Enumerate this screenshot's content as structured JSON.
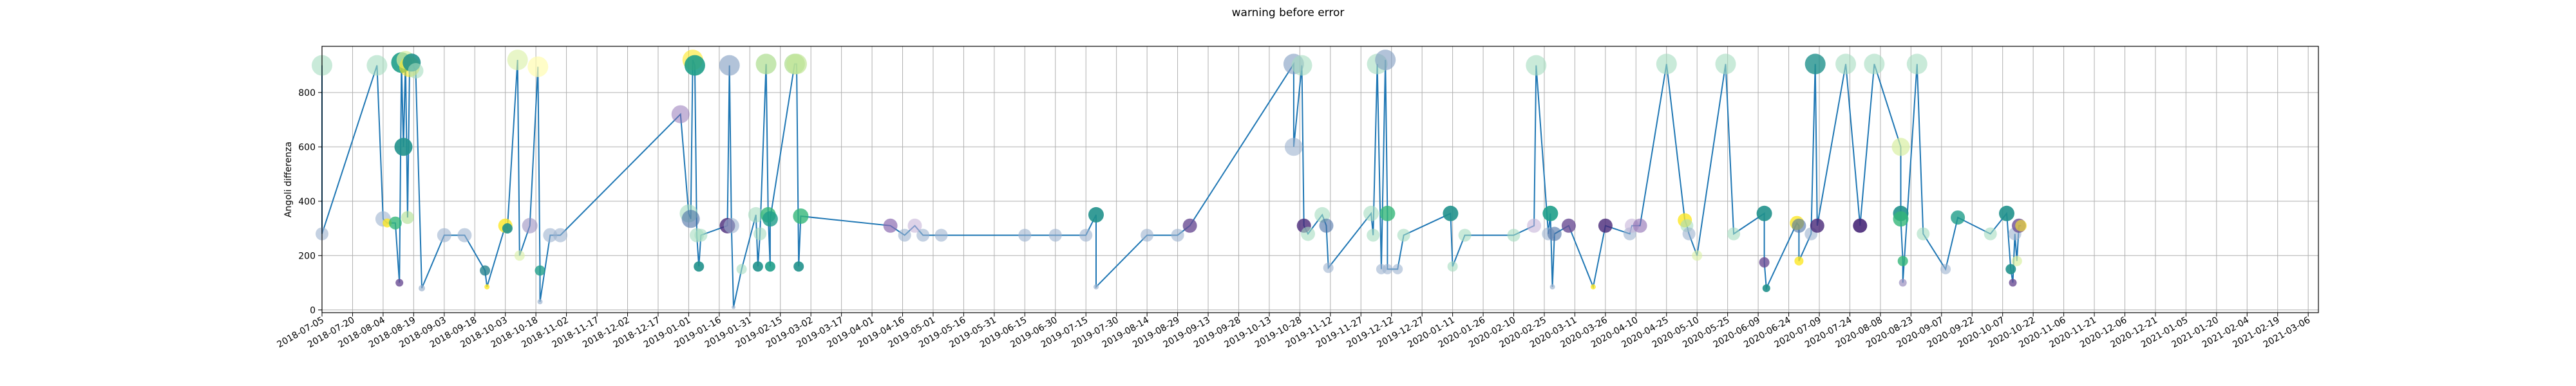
{
  "chart_data": {
    "type": "scatter",
    "title": "warning before error",
    "xlabel": "",
    "ylabel": "Angoli differenza",
    "x_type": "date",
    "xlim": [
      "2018-07-05",
      "2021-03-11"
    ],
    "ylim": [
      -10,
      970
    ],
    "yticks": [
      0,
      200,
      400,
      600,
      800
    ],
    "xticks": [
      "2018-07-05",
      "2018-07-20",
      "2018-08-04",
      "2018-08-19",
      "2018-09-03",
      "2018-09-18",
      "2018-10-03",
      "2018-10-18",
      "2018-11-02",
      "2018-11-17",
      "2018-12-02",
      "2018-12-17",
      "2019-01-01",
      "2019-01-16",
      "2019-01-31",
      "2019-02-15",
      "2019-03-02",
      "2019-03-17",
      "2019-04-01",
      "2019-04-16",
      "2019-05-01",
      "2019-05-16",
      "2019-05-31",
      "2019-06-15",
      "2019-06-30",
      "2019-07-15",
      "2019-07-30",
      "2019-08-14",
      "2019-08-29",
      "2019-09-13",
      "2019-09-28",
      "2019-10-13",
      "2019-10-28",
      "2019-11-12",
      "2019-11-27",
      "2019-12-12",
      "2019-12-27",
      "2020-01-11",
      "2020-01-26",
      "2020-02-10",
      "2020-02-25",
      "2020-03-11",
      "2020-03-26",
      "2020-04-10",
      "2020-04-25",
      "2020-05-10",
      "2020-05-25",
      "2020-06-09",
      "2020-06-24",
      "2020-07-09",
      "2020-07-24",
      "2020-08-08",
      "2020-08-23",
      "2020-09-07",
      "2020-09-22",
      "2020-10-07",
      "2020-10-22",
      "2020-11-06",
      "2020-11-21",
      "2020-12-06",
      "2020-12-21",
      "2021-01-05",
      "2021-01-20",
      "2021-02-04",
      "2021-02-19",
      "2021-03-06"
    ],
    "grid": true,
    "legend": "none",
    "line_color": "#1f77b4",
    "points": [
      {
        "x": "2018-07-05",
        "y": 900,
        "color": "#a5dcc0",
        "size": 16,
        "alpha": 0.6
      },
      {
        "x": "2018-07-05",
        "y": 280,
        "color": "#9cb3cf",
        "size": 10,
        "alpha": 0.6
      },
      {
        "x": "2018-08-01",
        "y": 900,
        "color": "#a5dcc0",
        "size": 16,
        "alpha": 0.6
      },
      {
        "x": "2018-08-04",
        "y": 335,
        "color": "#9cb3cf",
        "size": 12,
        "alpha": 0.6
      },
      {
        "x": "2018-08-06",
        "y": 320,
        "color": "#fde725",
        "size": 7,
        "alpha": 0.8
      },
      {
        "x": "2018-08-10",
        "y": 320,
        "color": "#35b779",
        "size": 10,
        "alpha": 0.8
      },
      {
        "x": "2018-08-12",
        "y": 100,
        "color": "#6a4c93",
        "size": 6,
        "alpha": 0.8
      },
      {
        "x": "2018-08-13",
        "y": 910,
        "color": "#1f9e89",
        "size": 16,
        "alpha": 0.9
      },
      {
        "x": "2018-08-14",
        "y": 600,
        "color": "#21918c",
        "size": 14,
        "alpha": 0.9
      },
      {
        "x": "2018-08-15",
        "y": 920,
        "color": "#d9f0a3",
        "size": 14,
        "alpha": 0.7
      },
      {
        "x": "2018-08-16",
        "y": 340,
        "color": "#addd8e",
        "size": 10,
        "alpha": 0.6
      },
      {
        "x": "2018-08-17",
        "y": 895,
        "color": "#fde725",
        "size": 16,
        "alpha": 0.6
      },
      {
        "x": "2018-08-18",
        "y": 910,
        "color": "#21918c",
        "size": 14,
        "alpha": 0.9
      },
      {
        "x": "2018-08-20",
        "y": 880,
        "color": "#a5dcc0",
        "size": 12,
        "alpha": 0.6
      },
      {
        "x": "2018-08-23",
        "y": 80,
        "color": "#9cb3cf",
        "size": 5,
        "alpha": 0.7
      },
      {
        "x": "2018-09-03",
        "y": 275,
        "color": "#9cb3cf",
        "size": 11,
        "alpha": 0.6
      },
      {
        "x": "2018-09-13",
        "y": 275,
        "color": "#9cb3cf",
        "size": 11,
        "alpha": 0.6
      },
      {
        "x": "2018-09-23",
        "y": 145,
        "color": "#26828e",
        "size": 8,
        "alpha": 0.8
      },
      {
        "x": "2018-09-24",
        "y": 85,
        "color": "#fde725",
        "size": 4,
        "alpha": 0.8
      },
      {
        "x": "2018-10-03",
        "y": 310,
        "color": "#fde725",
        "size": 11,
        "alpha": 0.8
      },
      {
        "x": "2018-10-04",
        "y": 300,
        "color": "#21918c",
        "size": 8,
        "alpha": 0.9
      },
      {
        "x": "2018-10-09",
        "y": 920,
        "color": "#d9f0a3",
        "size": 16,
        "alpha": 0.6
      },
      {
        "x": "2018-10-10",
        "y": 200,
        "color": "#d9f0a3",
        "size": 8,
        "alpha": 0.6
      },
      {
        "x": "2018-10-15",
        "y": 310,
        "color": "#9a8fbf",
        "size": 12,
        "alpha": 0.6
      },
      {
        "x": "2018-10-19",
        "y": 895,
        "color": "#fffcb0",
        "size": 16,
        "alpha": 0.7
      },
      {
        "x": "2018-10-20",
        "y": 145,
        "color": "#1f9e89",
        "size": 8,
        "alpha": 0.8
      },
      {
        "x": "2018-10-20",
        "y": 30,
        "color": "#9cb3cf",
        "size": 4,
        "alpha": 0.7
      },
      {
        "x": "2018-10-25",
        "y": 275,
        "color": "#9cb3cf",
        "size": 11,
        "alpha": 0.6
      },
      {
        "x": "2018-10-30",
        "y": 275,
        "color": "#9cb3cf",
        "size": 11,
        "alpha": 0.6
      },
      {
        "x": "2018-12-28",
        "y": 720,
        "color": "#8c6bb1",
        "size": 14,
        "alpha": 0.5
      },
      {
        "x": "2019-01-01",
        "y": 355,
        "color": "#a5dcc0",
        "size": 14,
        "alpha": 0.6
      },
      {
        "x": "2019-01-02",
        "y": 335,
        "color": "#4a6fa5",
        "size": 14,
        "alpha": 0.6
      },
      {
        "x": "2019-01-03",
        "y": 920,
        "color": "#fde725",
        "size": 16,
        "alpha": 0.6
      },
      {
        "x": "2019-01-04",
        "y": 900,
        "color": "#1f9e89",
        "size": 16,
        "alpha": 0.9
      },
      {
        "x": "2019-01-05",
        "y": 275,
        "color": "#a5dcc0",
        "size": 11,
        "alpha": 0.6
      },
      {
        "x": "2019-01-06",
        "y": 160,
        "color": "#21918c",
        "size": 8,
        "alpha": 0.9
      },
      {
        "x": "2019-01-07",
        "y": 275,
        "color": "#a5dcc0",
        "size": 10,
        "alpha": 0.6
      },
      {
        "x": "2019-01-20",
        "y": 310,
        "color": "#482878",
        "size": 12,
        "alpha": 0.8
      },
      {
        "x": "2019-01-21",
        "y": 900,
        "color": "#7f9bc0",
        "size": 16,
        "alpha": 0.6
      },
      {
        "x": "2019-01-22",
        "y": 310,
        "color": "#9cb3cf",
        "size": 12,
        "alpha": 0.6
      },
      {
        "x": "2019-01-23",
        "y": 10,
        "color": "#9cb3cf",
        "size": 3,
        "alpha": 0.7
      },
      {
        "x": "2019-01-27",
        "y": 150,
        "color": "#a5dcc0",
        "size": 8,
        "alpha": 0.6
      },
      {
        "x": "2019-02-03",
        "y": 350,
        "color": "#a5dcc0",
        "size": 12,
        "alpha": 0.6
      },
      {
        "x": "2019-02-04",
        "y": 160,
        "color": "#21918c",
        "size": 8,
        "alpha": 0.9
      },
      {
        "x": "2019-02-05",
        "y": 280,
        "color": "#a5dcc0",
        "size": 10,
        "alpha": 0.6
      },
      {
        "x": "2019-02-08",
        "y": 905,
        "color": "#addd8e",
        "size": 16,
        "alpha": 0.7
      },
      {
        "x": "2019-02-09",
        "y": 350,
        "color": "#35b779",
        "size": 12,
        "alpha": 0.8
      },
      {
        "x": "2019-02-10",
        "y": 160,
        "color": "#1f9e89",
        "size": 8,
        "alpha": 0.9
      },
      {
        "x": "2019-02-10",
        "y": 335,
        "color": "#1f9e89",
        "size": 12,
        "alpha": 0.8
      },
      {
        "x": "2019-02-22",
        "y": 905,
        "color": "#addd8e",
        "size": 16,
        "alpha": 0.7
      },
      {
        "x": "2019-02-23",
        "y": 905,
        "color": "#c2e699",
        "size": 16,
        "alpha": 0.7
      },
      {
        "x": "2019-02-24",
        "y": 160,
        "color": "#21918c",
        "size": 8,
        "alpha": 0.9
      },
      {
        "x": "2019-02-25",
        "y": 345,
        "color": "#35b779",
        "size": 12,
        "alpha": 0.8
      },
      {
        "x": "2019-04-10",
        "y": 310,
        "color": "#8c6bb1",
        "size": 11,
        "alpha": 0.7
      },
      {
        "x": "2019-04-17",
        "y": 275,
        "color": "#9cb3cf",
        "size": 10,
        "alpha": 0.6
      },
      {
        "x": "2019-04-22",
        "y": 310,
        "color": "#c6b4d8",
        "size": 11,
        "alpha": 0.6
      },
      {
        "x": "2019-04-26",
        "y": 275,
        "color": "#9cb3cf",
        "size": 10,
        "alpha": 0.6
      },
      {
        "x": "2019-05-05",
        "y": 275,
        "color": "#9cb3cf",
        "size": 10,
        "alpha": 0.6
      },
      {
        "x": "2019-06-15",
        "y": 275,
        "color": "#9cb3cf",
        "size": 10,
        "alpha": 0.6
      },
      {
        "x": "2019-06-30",
        "y": 275,
        "color": "#9cb3cf",
        "size": 10,
        "alpha": 0.6
      },
      {
        "x": "2019-07-15",
        "y": 275,
        "color": "#9cb3cf",
        "size": 10,
        "alpha": 0.6
      },
      {
        "x": "2019-07-20",
        "y": 350,
        "color": "#21918c",
        "size": 12,
        "alpha": 0.9
      },
      {
        "x": "2019-07-20",
        "y": 85,
        "color": "#9cb3cf",
        "size": 4,
        "alpha": 0.7
      },
      {
        "x": "2019-08-14",
        "y": 275,
        "color": "#9cb3cf",
        "size": 10,
        "alpha": 0.6
      },
      {
        "x": "2019-08-29",
        "y": 275,
        "color": "#9cb3cf",
        "size": 10,
        "alpha": 0.6
      },
      {
        "x": "2019-09-04",
        "y": 310,
        "color": "#6a4c93",
        "size": 11,
        "alpha": 0.8
      },
      {
        "x": "2019-10-25",
        "y": 905,
        "color": "#7f9bc0",
        "size": 16,
        "alpha": 0.6
      },
      {
        "x": "2019-10-25",
        "y": 600,
        "color": "#9cb3cf",
        "size": 14,
        "alpha": 0.6
      },
      {
        "x": "2019-10-29",
        "y": 900,
        "color": "#a5dcc0",
        "size": 16,
        "alpha": 0.6
      },
      {
        "x": "2019-10-30",
        "y": 310,
        "color": "#482878",
        "size": 11,
        "alpha": 0.8
      },
      {
        "x": "2019-11-01",
        "y": 280,
        "color": "#a5dcc0",
        "size": 11,
        "alpha": 0.6
      },
      {
        "x": "2019-11-08",
        "y": 350,
        "color": "#a5dcc0",
        "size": 12,
        "alpha": 0.6
      },
      {
        "x": "2019-11-10",
        "y": 310,
        "color": "#4a6fa5",
        "size": 11,
        "alpha": 0.6
      },
      {
        "x": "2019-11-11",
        "y": 155,
        "color": "#9cb3cf",
        "size": 8,
        "alpha": 0.6
      },
      {
        "x": "2019-12-02",
        "y": 355,
        "color": "#a5dcc0",
        "size": 12,
        "alpha": 0.6
      },
      {
        "x": "2019-12-03",
        "y": 275,
        "color": "#a5dcc0",
        "size": 10,
        "alpha": 0.6
      },
      {
        "x": "2019-12-05",
        "y": 905,
        "color": "#a5dcc0",
        "size": 16,
        "alpha": 0.6
      },
      {
        "x": "2019-12-07",
        "y": 150,
        "color": "#9cb3cf",
        "size": 8,
        "alpha": 0.6
      },
      {
        "x": "2019-12-09",
        "y": 920,
        "color": "#7f9bc0",
        "size": 16,
        "alpha": 0.6
      },
      {
        "x": "2019-12-10",
        "y": 355,
        "color": "#35b779",
        "size": 12,
        "alpha": 0.8
      },
      {
        "x": "2019-12-10",
        "y": 150,
        "color": "#9cb3cf",
        "size": 8,
        "alpha": 0.6
      },
      {
        "x": "2019-12-15",
        "y": 150,
        "color": "#9cb3cf",
        "size": 8,
        "alpha": 0.6
      },
      {
        "x": "2019-12-18",
        "y": 275,
        "color": "#a5dcc0",
        "size": 10,
        "alpha": 0.6
      },
      {
        "x": "2020-01-10",
        "y": 355,
        "color": "#21918c",
        "size": 12,
        "alpha": 0.9
      },
      {
        "x": "2020-01-11",
        "y": 160,
        "color": "#a5dcc0",
        "size": 8,
        "alpha": 0.6
      },
      {
        "x": "2020-01-17",
        "y": 275,
        "color": "#a5dcc0",
        "size": 10,
        "alpha": 0.6
      },
      {
        "x": "2020-02-10",
        "y": 275,
        "color": "#a5dcc0",
        "size": 10,
        "alpha": 0.6
      },
      {
        "x": "2020-02-20",
        "y": 310,
        "color": "#c6b4d8",
        "size": 11,
        "alpha": 0.6
      },
      {
        "x": "2020-02-21",
        "y": 900,
        "color": "#a5dcc0",
        "size": 16,
        "alpha": 0.6
      },
      {
        "x": "2020-02-27",
        "y": 280,
        "color": "#9cb3cf",
        "size": 10,
        "alpha": 0.6
      },
      {
        "x": "2020-02-28",
        "y": 355,
        "color": "#1f9e89",
        "size": 12,
        "alpha": 0.9
      },
      {
        "x": "2020-02-29",
        "y": 85,
        "color": "#9cb3cf",
        "size": 4,
        "alpha": 0.7
      },
      {
        "x": "2020-03-01",
        "y": 280,
        "color": "#4a6fa5",
        "size": 11,
        "alpha": 0.6
      },
      {
        "x": "2020-03-08",
        "y": 310,
        "color": "#6a4c93",
        "size": 11,
        "alpha": 0.8
      },
      {
        "x": "2020-03-20",
        "y": 85,
        "color": "#fde725",
        "size": 4,
        "alpha": 0.8
      },
      {
        "x": "2020-03-26",
        "y": 310,
        "color": "#482878",
        "size": 11,
        "alpha": 0.8
      },
      {
        "x": "2020-04-07",
        "y": 280,
        "color": "#9cb3cf",
        "size": 10,
        "alpha": 0.6
      },
      {
        "x": "2020-04-08",
        "y": 310,
        "color": "#c6b4d8",
        "size": 11,
        "alpha": 0.6
      },
      {
        "x": "2020-04-12",
        "y": 310,
        "color": "#8c6bb1",
        "size": 11,
        "alpha": 0.6
      },
      {
        "x": "2020-04-25",
        "y": 905,
        "color": "#a5dcc0",
        "size": 16,
        "alpha": 0.6
      },
      {
        "x": "2020-05-04",
        "y": 330,
        "color": "#fde725",
        "size": 11,
        "alpha": 0.8
      },
      {
        "x": "2020-05-05",
        "y": 310,
        "color": "#a5dcc0",
        "size": 10,
        "alpha": 0.6
      },
      {
        "x": "2020-05-06",
        "y": 280,
        "color": "#9cb3cf",
        "size": 10,
        "alpha": 0.6
      },
      {
        "x": "2020-05-10",
        "y": 200,
        "color": "#d9f0a3",
        "size": 8,
        "alpha": 0.6
      },
      {
        "x": "2020-05-24",
        "y": 905,
        "color": "#a5dcc0",
        "size": 16,
        "alpha": 0.6
      },
      {
        "x": "2020-05-28",
        "y": 280,
        "color": "#a5dcc0",
        "size": 10,
        "alpha": 0.6
      },
      {
        "x": "2020-06-12",
        "y": 355,
        "color": "#21918c",
        "size": 12,
        "alpha": 0.9
      },
      {
        "x": "2020-06-12",
        "y": 175,
        "color": "#6a4c93",
        "size": 8,
        "alpha": 0.8
      },
      {
        "x": "2020-06-13",
        "y": 80,
        "color": "#21918c",
        "size": 6,
        "alpha": 0.9
      },
      {
        "x": "2020-06-28",
        "y": 320,
        "color": "#fde725",
        "size": 11,
        "alpha": 0.8
      },
      {
        "x": "2020-06-29",
        "y": 310,
        "color": "#4a6fa5",
        "size": 11,
        "alpha": 0.6
      },
      {
        "x": "2020-06-29",
        "y": 180,
        "color": "#fde725",
        "size": 7,
        "alpha": 0.8
      },
      {
        "x": "2020-07-05",
        "y": 280,
        "color": "#9cb3cf",
        "size": 10,
        "alpha": 0.6
      },
      {
        "x": "2020-07-07",
        "y": 905,
        "color": "#21918c",
        "size": 16,
        "alpha": 0.8
      },
      {
        "x": "2020-07-08",
        "y": 310,
        "color": "#482878",
        "size": 11,
        "alpha": 0.8
      },
      {
        "x": "2020-07-22",
        "y": 905,
        "color": "#a5dcc0",
        "size": 16,
        "alpha": 0.6
      },
      {
        "x": "2020-07-29",
        "y": 310,
        "color": "#482878",
        "size": 11,
        "alpha": 0.9
      },
      {
        "x": "2020-08-05",
        "y": 905,
        "color": "#a5dcc0",
        "size": 16,
        "alpha": 0.6
      },
      {
        "x": "2020-08-18",
        "y": 600,
        "color": "#d9f0a3",
        "size": 14,
        "alpha": 0.7
      },
      {
        "x": "2020-08-18",
        "y": 355,
        "color": "#21918c",
        "size": 12,
        "alpha": 0.9
      },
      {
        "x": "2020-08-18",
        "y": 335,
        "color": "#35b779",
        "size": 12,
        "alpha": 0.8
      },
      {
        "x": "2020-08-19",
        "y": 180,
        "color": "#35b779",
        "size": 8,
        "alpha": 0.8
      },
      {
        "x": "2020-08-19",
        "y": 100,
        "color": "#9a8fbf",
        "size": 6,
        "alpha": 0.7
      },
      {
        "x": "2020-08-26",
        "y": 905,
        "color": "#a5dcc0",
        "size": 16,
        "alpha": 0.6
      },
      {
        "x": "2020-08-29",
        "y": 280,
        "color": "#a5dcc0",
        "size": 10,
        "alpha": 0.6
      },
      {
        "x": "2020-09-09",
        "y": 150,
        "color": "#9cb3cf",
        "size": 8,
        "alpha": 0.6
      },
      {
        "x": "2020-09-15",
        "y": 340,
        "color": "#1f9e89",
        "size": 11,
        "alpha": 0.8
      },
      {
        "x": "2020-10-01",
        "y": 280,
        "color": "#a5dcc0",
        "size": 10,
        "alpha": 0.6
      },
      {
        "x": "2020-10-09",
        "y": 355,
        "color": "#21918c",
        "size": 12,
        "alpha": 0.9
      },
      {
        "x": "2020-10-11",
        "y": 150,
        "color": "#21918c",
        "size": 8,
        "alpha": 0.9
      },
      {
        "x": "2020-10-12",
        "y": 100,
        "color": "#6a4c93",
        "size": 6,
        "alpha": 0.8
      },
      {
        "x": "2020-10-13",
        "y": 280,
        "color": "#9cb3cf",
        "size": 10,
        "alpha": 0.6
      },
      {
        "x": "2020-10-14",
        "y": 180,
        "color": "#d9f0a3",
        "size": 8,
        "alpha": 0.7
      },
      {
        "x": "2020-10-15",
        "y": 310,
        "color": "#6a4c93",
        "size": 11,
        "alpha": 0.8
      },
      {
        "x": "2020-10-16",
        "y": 310,
        "color": "#fde725",
        "size": 9,
        "alpha": 0.6
      }
    ]
  }
}
